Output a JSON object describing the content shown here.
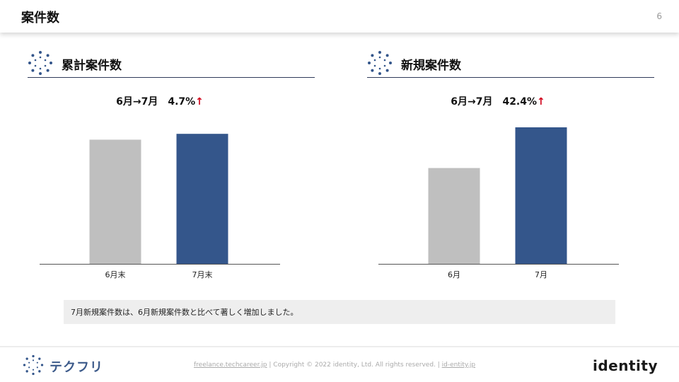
{
  "page": {
    "title": "案件数",
    "number": "6"
  },
  "left_section": {
    "title": "累計案件数",
    "subtitle_main": "6月→7月　4.7%",
    "subtitle_arrow": "↑"
  },
  "right_section": {
    "title": "新規案件数",
    "subtitle_main": "6月→7月　42.4%",
    "subtitle_arrow": "↑"
  },
  "chart_data": [
    {
      "type": "bar",
      "title": "累計案件数",
      "categories": [
        "6月末",
        "7月末"
      ],
      "values": [
        95.5,
        100
      ],
      "colors": [
        "#bfbfbf",
        "#34568b"
      ],
      "ylim": [
        0,
        105
      ],
      "grid": false,
      "axis_labels_visible": false
    },
    {
      "type": "bar",
      "title": "新規案件数",
      "categories": [
        "6月",
        "7月"
      ],
      "values": [
        70.2,
        100
      ],
      "colors": [
        "#bfbfbf",
        "#34568b"
      ],
      "ylim": [
        0,
        100
      ],
      "grid": false,
      "axis_labels_visible": false
    }
  ],
  "note": "7月新規案件数は、6月新規案件数と比べて著しく増加しました。",
  "footer": {
    "brand": "テクフリ",
    "copy_link1": "freelance.techcareer.jp",
    "copy_middle": " | Copyright © 2022 identity, Ltd. All rights reserved. | ",
    "copy_link2": "id-entity.jp",
    "logo": "identity"
  }
}
